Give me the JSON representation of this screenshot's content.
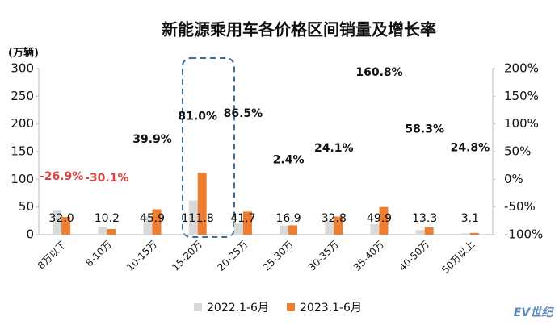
{
  "chart_data": {
    "type": "bar",
    "title": "新能源乘用车各价格区间销量及增长率",
    "y_label": "(万辆)",
    "categories": [
      "8万以下",
      "8-10万",
      "10-15万",
      "15-20万",
      "20-25万",
      "25-30万",
      "30-35万",
      "35-40万",
      "40-50万",
      "50万以上"
    ],
    "series": [
      {
        "name": "2022.1-6月",
        "color": "#d9d9d9",
        "values": [
          43.8,
          14.6,
          32.8,
          61.8,
          22.4,
          16.5,
          26.4,
          19.1,
          8.4,
          2.5
        ]
      },
      {
        "name": "2023.1-6月",
        "color": "#ed7d31",
        "values": [
          32.0,
          10.2,
          45.9,
          111.8,
          41.7,
          16.9,
          32.8,
          49.9,
          13.3,
          3.1
        ],
        "value_labels": [
          "32.0",
          "10.2",
          "45.9",
          "111.8",
          "41.7",
          "16.9",
          "32.8",
          "49.9",
          "13.3",
          "3.1"
        ]
      }
    ],
    "growth_rate": {
      "axis": "y2",
      "values": [
        -26.9,
        -30.1,
        39.9,
        81.0,
        86.5,
        2.4,
        24.1,
        160.8,
        58.3,
        24.8
      ],
      "value_labels": [
        "-26.9%",
        "-30.1%",
        "39.9%",
        "81.0%",
        "86.5%",
        "2.4%",
        "24.1%",
        "160.8%",
        "58.3%",
        "24.8%"
      ],
      "color": "#111111",
      "negative_color": "#e04040"
    },
    "ylim": [
      0,
      300
    ],
    "yticks": [
      0,
      50,
      100,
      150,
      200,
      250,
      300
    ],
    "y2lim": [
      -100,
      200
    ],
    "y2ticks": [
      {
        "value": -100,
        "label": "-100%"
      },
      {
        "value": -50,
        "label": "-50%"
      },
      {
        "value": 0,
        "label": "0%"
      },
      {
        "value": 50,
        "label": "50%"
      },
      {
        "value": 100,
        "label": "100%"
      },
      {
        "value": 150,
        "label": "150%"
      },
      {
        "value": 200,
        "label": "200%"
      }
    ],
    "logo": "EV世纪"
  }
}
